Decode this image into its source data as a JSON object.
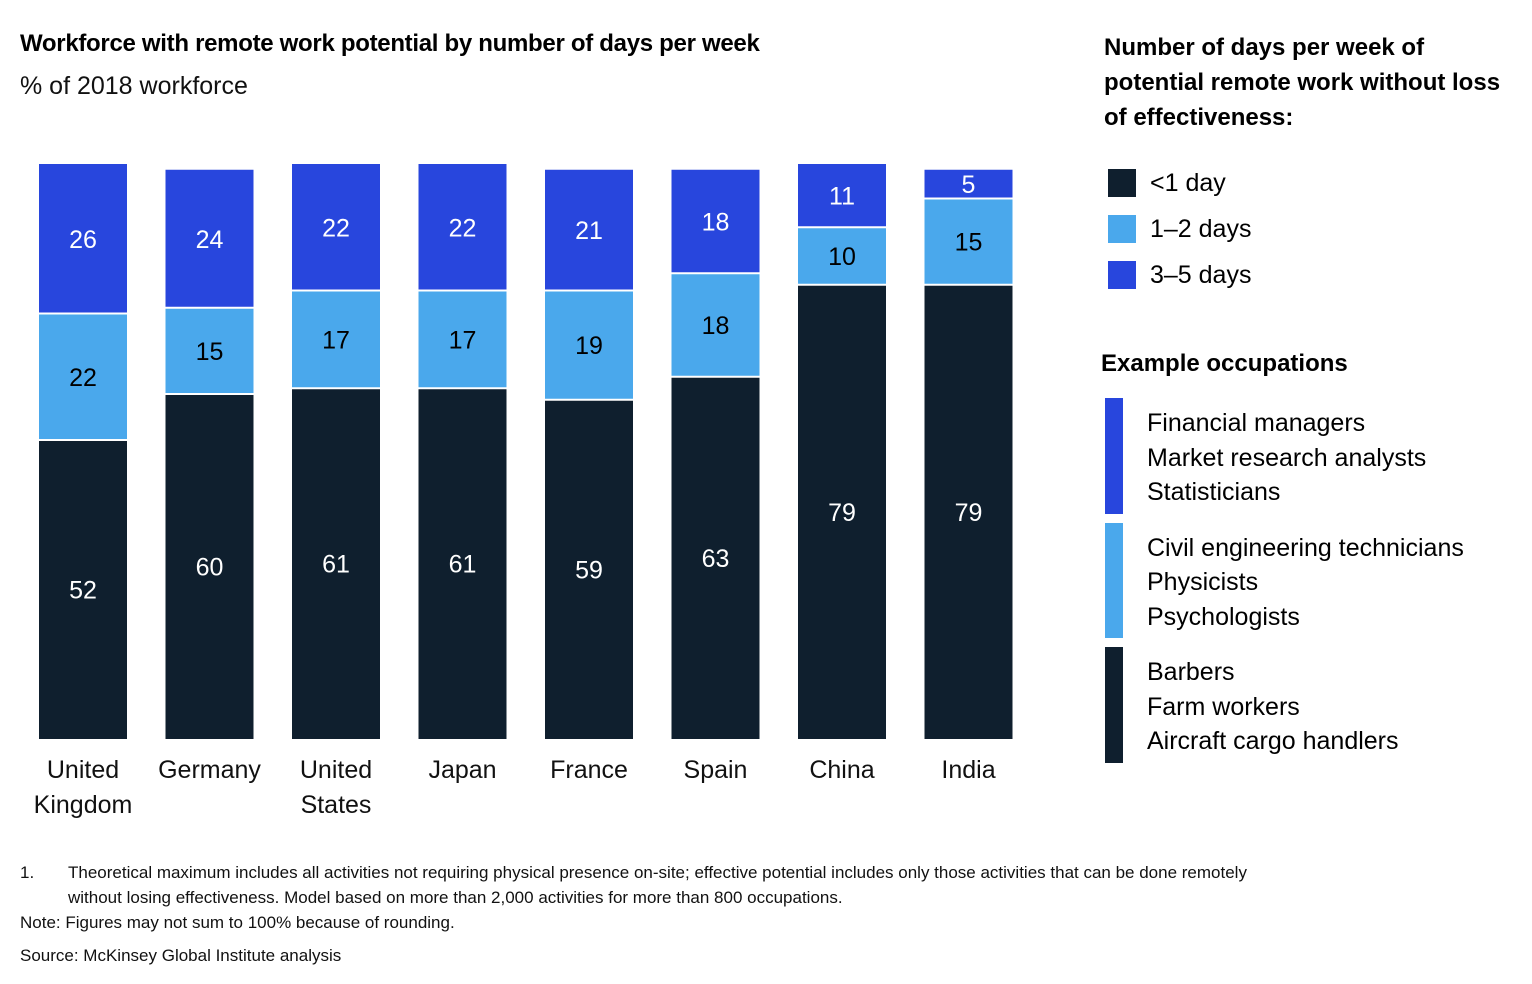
{
  "header": {
    "title": "Workforce with remote work potential by number of days per week",
    "subtitle": "% of 2018 workforce"
  },
  "chart_data": {
    "type": "bar",
    "stacked": true,
    "title": "Workforce with remote work potential by number of days per week",
    "subtitle": "% of 2018 workforce",
    "xlabel": "",
    "ylabel": "% of 2018 workforce",
    "ylim": [
      0,
      100
    ],
    "grid": false,
    "categories": [
      [
        "United",
        "Kingdom"
      ],
      [
        "Germany"
      ],
      [
        "United",
        "States"
      ],
      [
        "Japan"
      ],
      [
        "France"
      ],
      [
        "Spain"
      ],
      [
        "China"
      ],
      [
        "India"
      ]
    ],
    "series": [
      {
        "name": "<1 day",
        "color": "#0f1f2e",
        "label_color": "#ffffff",
        "values": [
          52,
          60,
          61,
          61,
          59,
          63,
          79,
          79
        ]
      },
      {
        "name": "1–2 days",
        "color": "#4aa8ec",
        "label_color": "#000000",
        "values": [
          22,
          15,
          17,
          17,
          19,
          18,
          10,
          15
        ]
      },
      {
        "name": "3–5 days",
        "color": "#2846dd",
        "label_color": "#ffffff",
        "values": [
          26,
          24,
          22,
          22,
          21,
          18,
          11,
          5
        ]
      }
    ],
    "legend": {
      "title": "Number of days per week of potential remote work without loss of effectiveness:",
      "placement": "right"
    }
  },
  "legend": {
    "title": "Number of days per week of potential remote work without loss of effectiveness:",
    "items": [
      {
        "label": "<1 day",
        "color": "#0f1f2e"
      },
      {
        "label": "1–2 days",
        "color": "#4aa8ec"
      },
      {
        "label": "3–5 days",
        "color": "#2846dd"
      }
    ]
  },
  "occupations": {
    "title": "Example occupations",
    "groups": [
      {
        "color": "#2846dd",
        "items": [
          "Financial managers",
          "Market research analysts",
          "Statisticians"
        ]
      },
      {
        "color": "#4aa8ec",
        "items": [
          "Civil engineering technicians",
          "Physicists",
          "Psychologists"
        ]
      },
      {
        "color": "#0f1f2e",
        "items": [
          "Barbers",
          "Farm workers",
          "Aircraft cargo handlers"
        ]
      }
    ]
  },
  "footnotes": {
    "note1_num": "1.",
    "note1_line1": "Theoretical maximum includes all activities not requiring physical presence on-site; effective potential includes only those activities that can be done remotely",
    "note1_line2": "without losing effectiveness. Model based on more than 2,000 activities for more than 800 occupations.",
    "note": "Note: Figures may not sum to 100% because of rounding.",
    "source": "Source: McKinsey Global Institute analysis"
  }
}
